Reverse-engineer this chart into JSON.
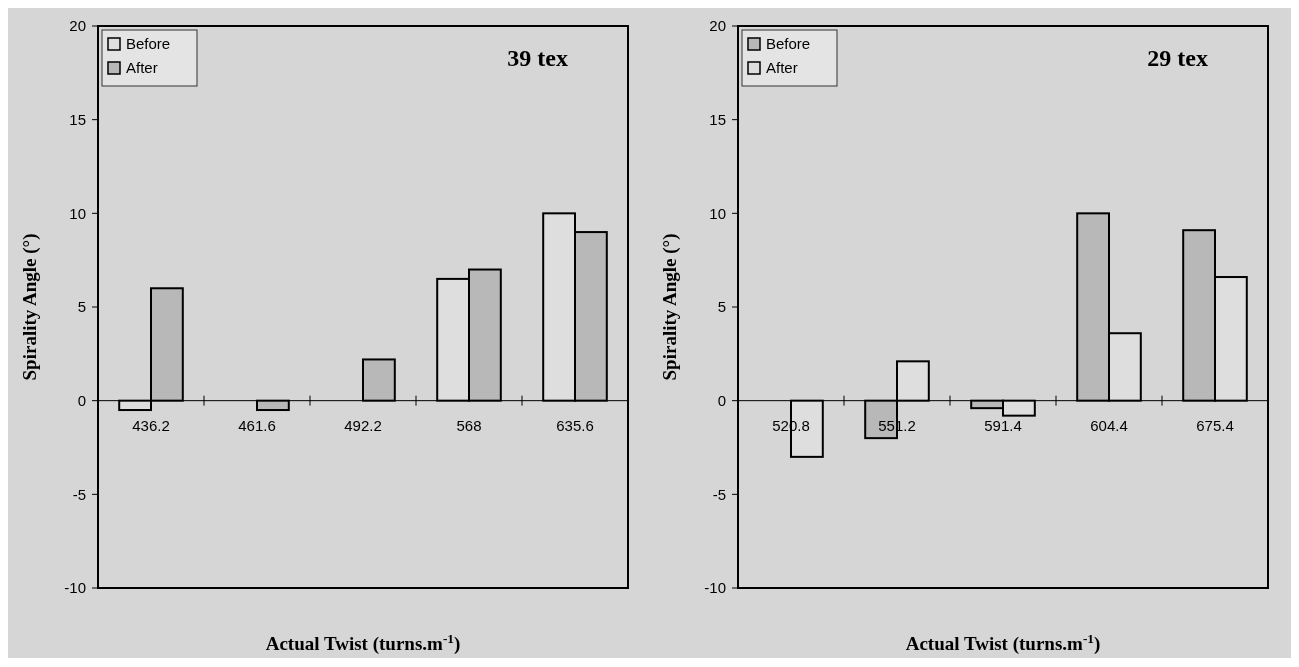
{
  "chart_data": [
    {
      "type": "bar",
      "title": "39 tex",
      "xlabel": "Actual Twist (turns.m$^{-1}$)",
      "ylabel": "Spirality Angle (°)",
      "categories": [
        "436.2",
        "461.6",
        "492.2",
        "568",
        "635.6"
      ],
      "series": [
        {
          "name": "Before",
          "color": "#dedede",
          "values": [
            -0.5,
            null,
            null,
            6.5,
            10.0
          ]
        },
        {
          "name": "After",
          "color": "#b8b8b8",
          "values": [
            6.0,
            -0.5,
            2.2,
            7.0,
            9.0
          ]
        }
      ],
      "ylim": [
        -10,
        20
      ],
      "yticks": [
        -10,
        -5,
        0,
        5,
        10,
        15,
        20
      ],
      "legend": "top left",
      "grid": false
    },
    {
      "type": "bar",
      "title": "29 tex",
      "xlabel": "Actual Twist (turns.m$^{-1}$)",
      "ylabel": "Spirality Angle (°)",
      "categories": [
        "520.8",
        "551.2",
        "591.4",
        "604.4",
        "675.4"
      ],
      "series": [
        {
          "name": "Before",
          "color": "#b8b8b8",
          "values": [
            null,
            -2.0,
            -0.4,
            10.0,
            9.1
          ]
        },
        {
          "name": "After",
          "color": "#dedede",
          "values": [
            -3.0,
            2.1,
            -0.8,
            3.6,
            6.6
          ]
        }
      ],
      "ylim": [
        -10,
        20
      ],
      "yticks": [
        -10,
        -5,
        0,
        5,
        10,
        15,
        20
      ],
      "legend": "top left",
      "grid": false
    }
  ]
}
